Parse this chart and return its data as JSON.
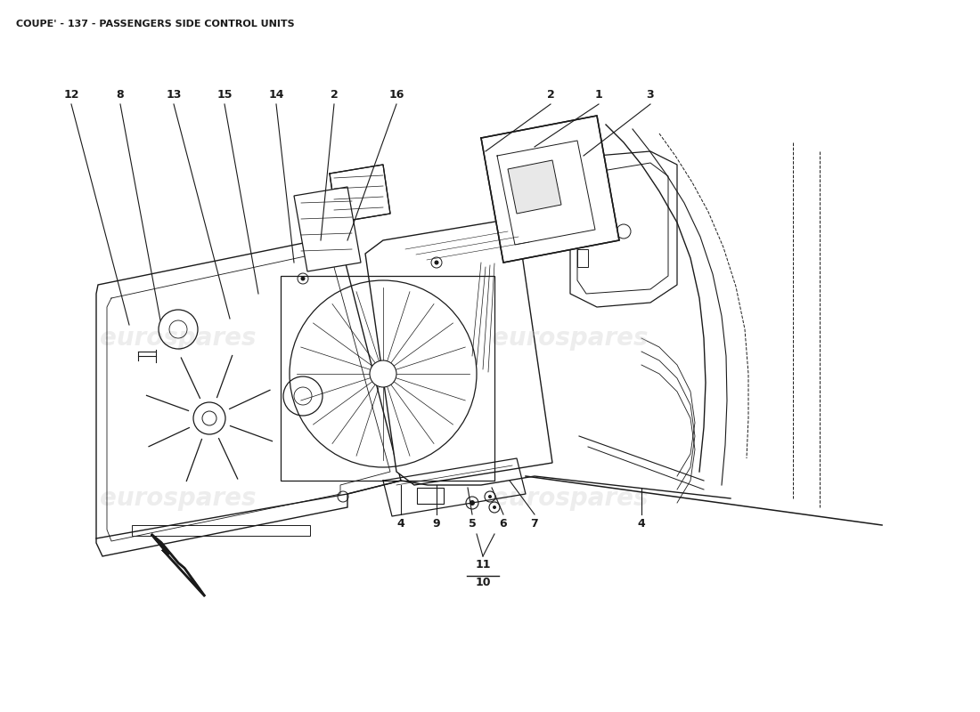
{
  "title": "COUPE' - 137 - PASSENGERS SIDE CONTROL UNITS",
  "title_fontsize": 8,
  "title_fontweight": "bold",
  "bg_color": "#ffffff",
  "watermark_color": "#cccccc",
  "watermark_alpha": 0.35,
  "black": "#1a1a1a",
  "lw_main": 0.9,
  "top_labels": [
    [
      "12",
      80,
      107
    ],
    [
      "8",
      135,
      107
    ],
    [
      "13",
      195,
      107
    ],
    [
      "15",
      252,
      107
    ],
    [
      "14",
      310,
      107
    ],
    [
      "2",
      375,
      107
    ],
    [
      "16",
      445,
      107
    ],
    [
      "2",
      618,
      107
    ],
    [
      "1",
      672,
      107
    ],
    [
      "3",
      730,
      107
    ]
  ],
  "bot_labels": [
    [
      "4",
      450,
      588
    ],
    [
      "9",
      490,
      588
    ],
    [
      "5",
      530,
      588
    ],
    [
      "6",
      565,
      588
    ],
    [
      "7",
      600,
      588
    ],
    [
      "4",
      720,
      588
    ]
  ],
  "label_11": [
    542,
    635
  ],
  "label_10": [
    542,
    655
  ],
  "watermarks": [
    [
      200,
      380,
      "eurospares"
    ],
    [
      640,
      380,
      "eurospares"
    ],
    [
      200,
      560,
      "eurospares"
    ],
    [
      640,
      560,
      "eurospares"
    ]
  ]
}
